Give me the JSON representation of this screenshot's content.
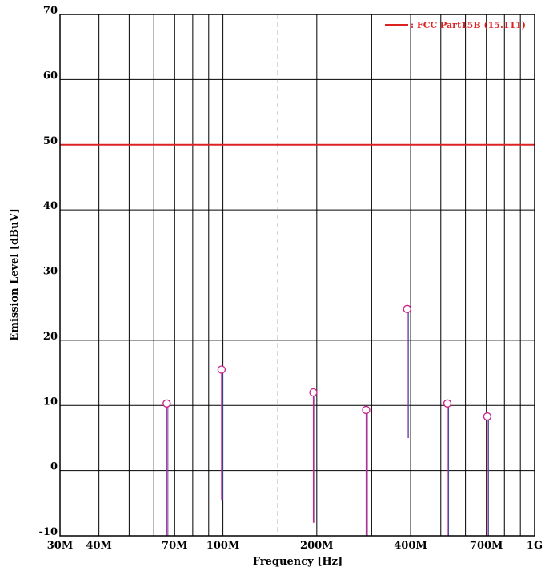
{
  "colors": {
    "limit": "#dd2222",
    "marker": "#cc2288",
    "marker_fill": "#ffffff",
    "marker_stem_shadow": "#4444aa",
    "grid": "#000000",
    "center_dashed": "#888888"
  },
  "chart_data": {
    "type": "scatter",
    "title": "",
    "xlabel": "Frequency [Hz]",
    "ylabel": "Emission Level [dBuV]",
    "x_scale": "log",
    "xlim": [
      30000000,
      1000000000
    ],
    "ylim": [
      -10,
      70
    ],
    "x_ticks": [
      {
        "value": 30000000,
        "label": "30M"
      },
      {
        "value": 40000000,
        "label": "40M"
      },
      {
        "value": 70000000,
        "label": "70M"
      },
      {
        "value": 100000000,
        "label": "100M"
      },
      {
        "value": 200000000,
        "label": "200M"
      },
      {
        "value": 400000000,
        "label": "400M"
      },
      {
        "value": 700000000,
        "label": "700M"
      },
      {
        "value": 1000000000,
        "label": "1G"
      }
    ],
    "y_ticks": [
      {
        "value": -10,
        "label": "-10"
      },
      {
        "value": 0,
        "label": "0"
      },
      {
        "value": 10,
        "label": "10"
      },
      {
        "value": 20,
        "label": "20"
      },
      {
        "value": 30,
        "label": "30"
      },
      {
        "value": 40,
        "label": "40"
      },
      {
        "value": 50,
        "label": "50"
      },
      {
        "value": 60,
        "label": "60"
      },
      {
        "value": 70,
        "label": "70"
      }
    ],
    "grid": true,
    "grid_lines_x": [
      40000000,
      50000000,
      60000000,
      70000000,
      80000000,
      90000000,
      100000000,
      200000000,
      300000000,
      400000000,
      500000000,
      600000000,
      700000000,
      800000000,
      900000000
    ],
    "dashed_line_x": 150000000,
    "limit_line": {
      "name": ": FCC Part15B (15.111)",
      "value": 50
    },
    "legend": {
      "position": "top-right",
      "entries": [
        ": FCC Part15B (15.111)"
      ]
    },
    "points": [
      {
        "x": 66000000,
        "y": 10.3,
        "stem_low": -10
      },
      {
        "x": 99000000,
        "y": 15.5,
        "stem_low": -4.5
      },
      {
        "x": 195000000,
        "y": 12.0,
        "stem_low": -8
      },
      {
        "x": 288000000,
        "y": 9.3,
        "stem_low": -10
      },
      {
        "x": 390000000,
        "y": 24.8,
        "stem_low": 5
      },
      {
        "x": 525000000,
        "y": 10.3,
        "stem_low": -10
      },
      {
        "x": 705000000,
        "y": 8.3,
        "stem_low": -10
      }
    ]
  }
}
